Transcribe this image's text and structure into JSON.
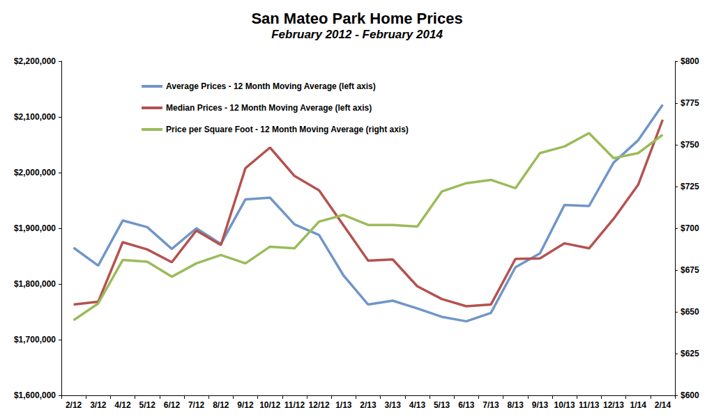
{
  "chart_data": {
    "type": "line",
    "title": "San Mateo Park Home Prices",
    "subtitle": "February 2012 - February 2014",
    "categories": [
      "2/12",
      "3/12",
      "4/12",
      "5/12",
      "6/12",
      "7/12",
      "8/12",
      "9/12",
      "10/12",
      "11/12",
      "12/12",
      "1/13",
      "2/13",
      "3/13",
      "4/13",
      "5/13",
      "6/13",
      "7/13",
      "8/13",
      "9/13",
      "10/13",
      "11/13",
      "12/13",
      "1/14",
      "2/14"
    ],
    "series": [
      {
        "name": "Average Prices - 12 Month Moving Average (left axis)",
        "color": "#7096c8",
        "axis": "y",
        "marker": "none",
        "line_style": "solid",
        "values": [
          1865000,
          1833000,
          1914000,
          1902000,
          1863000,
          1900000,
          1872000,
          1952000,
          1955000,
          1907000,
          1888000,
          1815000,
          1763000,
          1770000,
          1756000,
          1741000,
          1733000,
          1748000,
          1830000,
          1855000,
          1942000,
          1940000,
          2018000,
          2058000,
          2122000
        ]
      },
      {
        "name": "Median Prices - 12 Month Moving Average (left axis)",
        "color": "#b4524f",
        "axis": "y",
        "marker": "none",
        "line_style": "solid",
        "values": [
          1763000,
          1768000,
          1875000,
          1862000,
          1839000,
          1896000,
          1870000,
          2008000,
          2045000,
          1994000,
          1968000,
          1905000,
          1842000,
          1844000,
          1796000,
          1773000,
          1760000,
          1763000,
          1845000,
          1846000,
          1873000,
          1864000,
          1917000,
          1978000,
          2095000
        ]
      },
      {
        "name": "Price per Square Foot - 12 Month Moving Average (right axis)",
        "color": "#9bbb59",
        "axis": "y2",
        "marker": "none",
        "line_style": "solid",
        "values": [
          645,
          655,
          681,
          680,
          671,
          679,
          684,
          679,
          689,
          688,
          704,
          708,
          702,
          702,
          701,
          722,
          727,
          729,
          724,
          745,
          749,
          757,
          742,
          745,
          756
        ]
      }
    ],
    "ylim": [
      1600000,
      2200000
    ],
    "yticks": [
      {
        "value": 1600000,
        "label": "$1,600,000"
      },
      {
        "value": 1700000,
        "label": "$1,700,000"
      },
      {
        "value": 1800000,
        "label": "$1,800,000"
      },
      {
        "value": 1900000,
        "label": "$1,900,000"
      },
      {
        "value": 2000000,
        "label": "$2,000,000"
      },
      {
        "value": 2100000,
        "label": "$2,100,000"
      },
      {
        "value": 2200000,
        "label": "$2,200,000"
      }
    ],
    "y2lim": [
      600,
      800
    ],
    "y2ticks": [
      {
        "value": 600,
        "label": "$600"
      },
      {
        "value": 625,
        "label": "$625"
      },
      {
        "value": 650,
        "label": "$650"
      },
      {
        "value": 675,
        "label": "$675"
      },
      {
        "value": 700,
        "label": "$700"
      },
      {
        "value": 725,
        "label": "$725"
      },
      {
        "value": 750,
        "label": "$750"
      },
      {
        "value": 775,
        "label": "$775"
      },
      {
        "value": 800,
        "label": "$800"
      }
    ],
    "grid": false,
    "legend": "upper left"
  }
}
